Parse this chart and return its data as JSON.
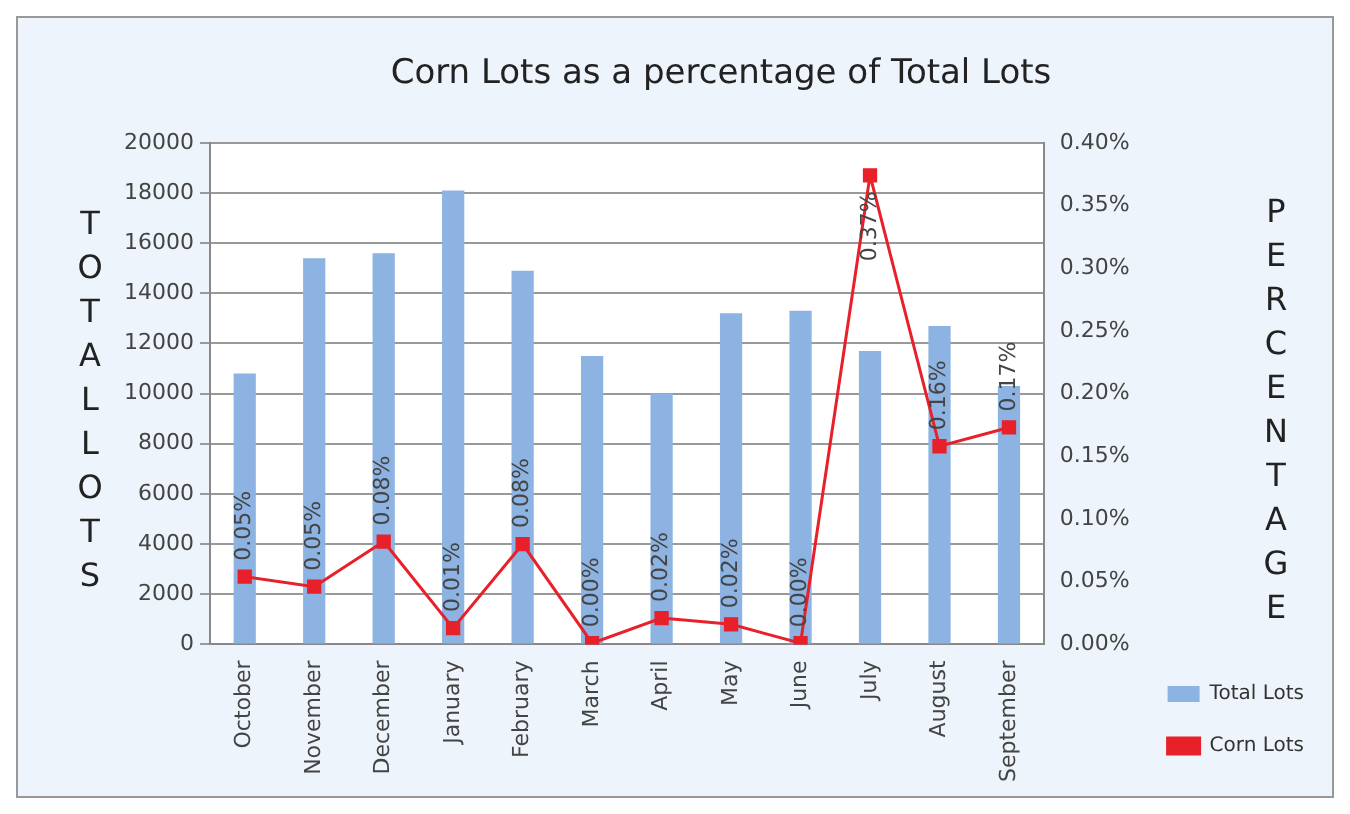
{
  "chart_data": {
    "type": "bar",
    "title": "Corn Lots as a percentage of Total Lots",
    "ylabel": "TOTAL LOTS",
    "y2label": "PERCENTAGE",
    "categories": [
      "October",
      "November",
      "December",
      "January",
      "February",
      "March",
      "April",
      "May",
      "June",
      "July",
      "August",
      "September"
    ],
    "series": [
      {
        "name": "Total Lots",
        "color": "#8db3e2",
        "values": [
          10800,
          15400,
          15600,
          18100,
          14900,
          11500,
          10000,
          13200,
          13300,
          11700,
          12700,
          10300
        ]
      },
      {
        "name": "Corn Lots",
        "type": "line",
        "axis": "y2",
        "color": "#e8202a",
        "marker": "square",
        "values": [
          0.054,
          0.046,
          0.082,
          0.013,
          0.08,
          0.001,
          0.021,
          0.016,
          0.001,
          0.374,
          0.158,
          0.173
        ],
        "value_labels": [
          "0.05%",
          "0.05%",
          "0.08%",
          "0.01%",
          "0.08%",
          "0.00%",
          "0.02%",
          "0.02%",
          "0.00%",
          "0.37%",
          "0.16%",
          "0.17%"
        ]
      }
    ],
    "ylim": [
      0,
      20000
    ],
    "yticks": [
      0,
      2000,
      4000,
      6000,
      8000,
      10000,
      12000,
      14000,
      16000,
      18000,
      20000
    ],
    "y2lim": [
      0,
      0.4
    ],
    "y2ticks": [
      {
        "value": 0,
        "label": "0.00%"
      },
      {
        "value": 0.05,
        "label": "0.05%"
      },
      {
        "value": 0.1,
        "label": "0.10%"
      },
      {
        "value": 0.15,
        "label": "0.15%"
      },
      {
        "value": 0.2,
        "label": "0.20%"
      },
      {
        "value": 0.25,
        "label": "0.25%"
      },
      {
        "value": 0.3,
        "label": "0.30%"
      },
      {
        "value": 0.35,
        "label": "0.35%"
      },
      {
        "value": 0.4,
        "label": "0.40%"
      }
    ],
    "grid": "y",
    "legend": "bottom right"
  }
}
